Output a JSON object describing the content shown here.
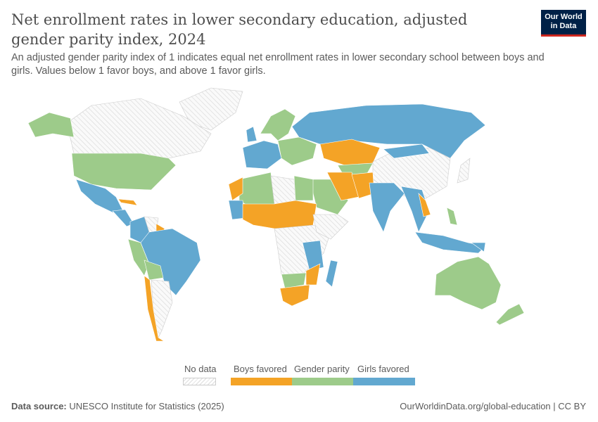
{
  "header": {
    "title": "Net enrollment rates in lower secondary education, adjusted gender parity index, 2024",
    "subtitle": "An adjusted gender parity index of 1 indicates equal net enrollment rates in lower secondary school between boys and girls. Values below 1 favor boys, and above 1 favor girls.",
    "logo": "Our World in Data"
  },
  "legend": {
    "no_data": "No data",
    "categories": [
      {
        "label": "Boys favored",
        "color": "#f4a326"
      },
      {
        "label": "Gender parity",
        "color": "#9dcb8a"
      },
      {
        "label": "Girls favored",
        "color": "#62a8d0"
      }
    ]
  },
  "footer": {
    "source_label": "Data source:",
    "source": "UNESCO Institute for Statistics (2025)",
    "link": "OurWorldinData.org/global-education | CC BY"
  }
}
